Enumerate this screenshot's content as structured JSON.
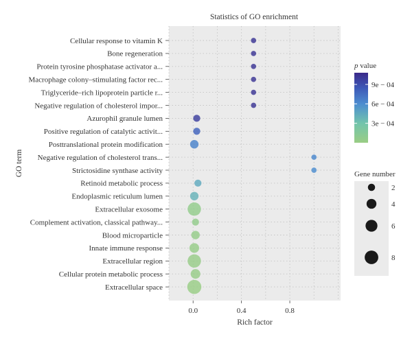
{
  "chart_data": {
    "type": "scatter",
    "title": "Statistics of GO enrichment",
    "xlabel": "Rich factor",
    "ylabel": "GO term",
    "xlim": [
      -0.2,
      1.22
    ],
    "xticks": [
      0.0,
      0.4,
      0.8
    ],
    "xtick_labels": [
      "0.0",
      "0.4",
      "0.8"
    ],
    "grid": true,
    "background": "#ebebeb",
    "categories": [
      "Cellular response to vitamin K",
      "Bone regeneration",
      "Protein tyrosine phosphatase activator a...",
      "Macrophage colony–stimulating factor rec...",
      "Triglyceride–rich lipoprotein particle r...",
      "Negative regulation of cholesterol impor...",
      "Azurophil granule lumen",
      "Positive regulation of catalytic activit...",
      "Posttranslational protein modification",
      "Negative regulation of cholesterol trans...",
      "Strictosidine synthase activity",
      "Retinoid metabolic process",
      "Endoplasmic reticulum lumen",
      "Extracellular exosome",
      "Complement activation, classical pathway...",
      "Blood microparticle",
      "Innate immune response",
      "Extracellular region",
      "Cellular protein metabolic process",
      "Extracellular space"
    ],
    "points": [
      {
        "term": "Cellular response to vitamin K",
        "rich_factor": 0.5,
        "gene_number": 1,
        "p_value": 0.00103
      },
      {
        "term": "Bone regeneration",
        "rich_factor": 0.5,
        "gene_number": 1,
        "p_value": 0.00103
      },
      {
        "term": "Protein tyrosine phosphatase activator a...",
        "rich_factor": 0.5,
        "gene_number": 1,
        "p_value": 0.00103
      },
      {
        "term": "Macrophage colony–stimulating factor rec...",
        "rich_factor": 0.5,
        "gene_number": 1,
        "p_value": 0.00103
      },
      {
        "term": "Triglyceride–rich lipoprotein particle r...",
        "rich_factor": 0.5,
        "gene_number": 1,
        "p_value": 0.00103
      },
      {
        "term": "Negative regulation of cholesterol impor...",
        "rich_factor": 0.5,
        "gene_number": 1,
        "p_value": 0.00103
      },
      {
        "term": "Azurophil granule lumen",
        "rich_factor": 0.03,
        "gene_number": 2,
        "p_value": 0.00098
      },
      {
        "term": "Positive regulation of catalytic activit...",
        "rich_factor": 0.03,
        "gene_number": 2,
        "p_value": 0.0008
      },
      {
        "term": "Posttranslational protein modification",
        "rich_factor": 0.01,
        "gene_number": 3,
        "p_value": 0.00065
      },
      {
        "term": "Negative regulation of cholesterol trans...",
        "rich_factor": 1.0,
        "gene_number": 1,
        "p_value": 0.00062
      },
      {
        "term": "Strictosidine synthase activity",
        "rich_factor": 1.0,
        "gene_number": 1,
        "p_value": 0.0006
      },
      {
        "term": "Retinoid metabolic process",
        "rich_factor": 0.04,
        "gene_number": 2,
        "p_value": 0.00045
      },
      {
        "term": "Endoplasmic reticulum lumen",
        "rich_factor": 0.01,
        "gene_number": 3,
        "p_value": 0.0004
      },
      {
        "term": "Extracellular exosome",
        "rich_factor": 0.01,
        "gene_number": 8,
        "p_value": 5e-05
      },
      {
        "term": "Complement activation, classical pathway...",
        "rich_factor": 0.02,
        "gene_number": 2,
        "p_value": 5e-05
      },
      {
        "term": "Blood microparticle",
        "rich_factor": 0.02,
        "gene_number": 3,
        "p_value": 4e-05
      },
      {
        "term": "Innate immune response",
        "rich_factor": 0.01,
        "gene_number": 4,
        "p_value": 3e-05
      },
      {
        "term": "Extracellular region",
        "rich_factor": 0.01,
        "gene_number": 8,
        "p_value": 2e-05
      },
      {
        "term": "Cellular protein metabolic process",
        "rich_factor": 0.02,
        "gene_number": 4,
        "p_value": 2e-05
      },
      {
        "term": "Extracellular space",
        "rich_factor": 0.01,
        "gene_number": 9,
        "p_value": 1e-05
      }
    ],
    "color_legend": {
      "title_italic": "p",
      "title_rest": " value",
      "min": 0.0,
      "max": 0.00108,
      "ticks": [
        0.0003,
        0.0006,
        0.0009
      ],
      "tick_labels": [
        "3e − 04",
        "6e − 04",
        "9e − 04"
      ],
      "colors_low_to_high": [
        "#9acd84",
        "#72c4ac",
        "#4d8ed0",
        "#3d59b8",
        "#3b2a8a"
      ]
    },
    "size_legend": {
      "title": "Gene number",
      "values": [
        2,
        4,
        6,
        8
      ],
      "labels": [
        "2",
        "4",
        "6",
        "8"
      ]
    },
    "legend_position": "right"
  }
}
